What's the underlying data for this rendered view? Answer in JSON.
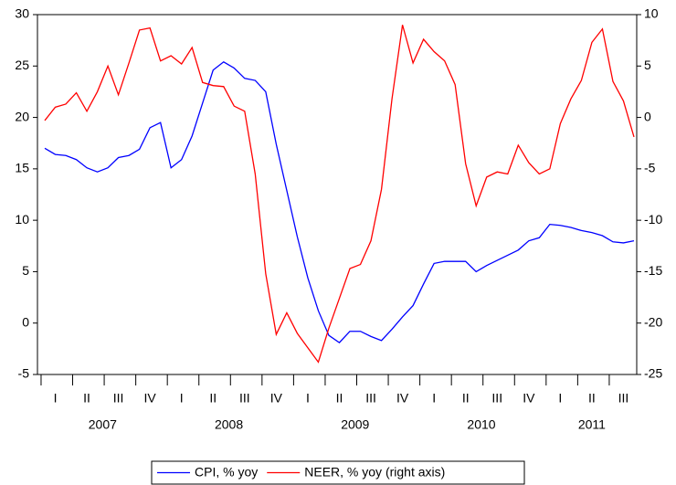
{
  "chart_data": {
    "type": "line",
    "categories": [
      null,
      "I",
      null,
      null,
      "II",
      null,
      null,
      "III",
      null,
      null,
      "IV",
      null,
      null,
      "I",
      null,
      null,
      "II",
      null,
      null,
      "III",
      null,
      null,
      "IV",
      null,
      null,
      "I",
      null,
      null,
      "II",
      null,
      null,
      "III",
      null,
      null,
      "IV",
      null,
      null,
      "I",
      null,
      null,
      "II",
      null,
      null,
      "III",
      null,
      null,
      "IV",
      null,
      null,
      "I",
      null,
      null,
      "II",
      null,
      null,
      "III",
      null
    ],
    "years": [
      "2007",
      "2008",
      "2009",
      "2010",
      "2011"
    ],
    "series": [
      {
        "name": "CPI, % yoy",
        "color": "#0000ff",
        "values": [
          17,
          16.4,
          16.3,
          15.9,
          15.1,
          14.7,
          15.1,
          16.1,
          16.3,
          16.9,
          19,
          19.5,
          15.1,
          15.9,
          18.2,
          21.4,
          24.6,
          25.4,
          24.8,
          23.8,
          23.6,
          22.5,
          17.4,
          12.9,
          8.4,
          4.4,
          1.2,
          -1.2,
          -1.9,
          -0.8,
          -0.8,
          -1.3,
          -1.7,
          -0.6,
          0.6,
          1.7,
          3.8,
          5.8,
          6.0,
          6.0,
          6.0,
          5.0,
          5.6,
          6.1,
          6.6,
          7.1,
          8.0,
          8.3,
          9.6,
          9.5,
          9.3,
          9.0,
          8.8,
          8.5,
          7.9,
          7.8,
          8.0
        ]
      },
      {
        "name": "NEER, % yoy (right axis)",
        "color": "#ff0000",
        "axis": "y2",
        "values": [
          -0.3,
          1.0,
          1.3,
          2.4,
          0.6,
          2.5,
          5.0,
          2.2,
          5.3,
          8.5,
          8.7,
          5.5,
          6.0,
          5.2,
          6.8,
          3.4,
          3.1,
          3.0,
          1.1,
          0.6,
          -5.5,
          -15.2,
          -21.1,
          -19.0,
          -21.0,
          -22.4,
          -23.8,
          -20.5,
          -17.6,
          -14.7,
          -14.3,
          -12.0,
          -7.0,
          1.8,
          9.0,
          5.3,
          7.6,
          6.4,
          5.5,
          3.2,
          -4.5,
          -8.6,
          -5.8,
          -5.3,
          -5.5,
          -2.7,
          -4.4,
          -5.5,
          -5.0,
          -0.6,
          1.8,
          3.6,
          7.3,
          8.6,
          3.5,
          1.6,
          -1.9
        ]
      }
    ],
    "ylim": [
      -5,
      30
    ],
    "yticks": [
      -5,
      0,
      5,
      10,
      15,
      20,
      25,
      30
    ],
    "y2lim": [
      -25,
      10
    ],
    "y2ticks": [
      -25,
      -20,
      -15,
      -10,
      -5,
      0,
      5,
      10
    ],
    "legend": "bottom",
    "grid": false
  }
}
